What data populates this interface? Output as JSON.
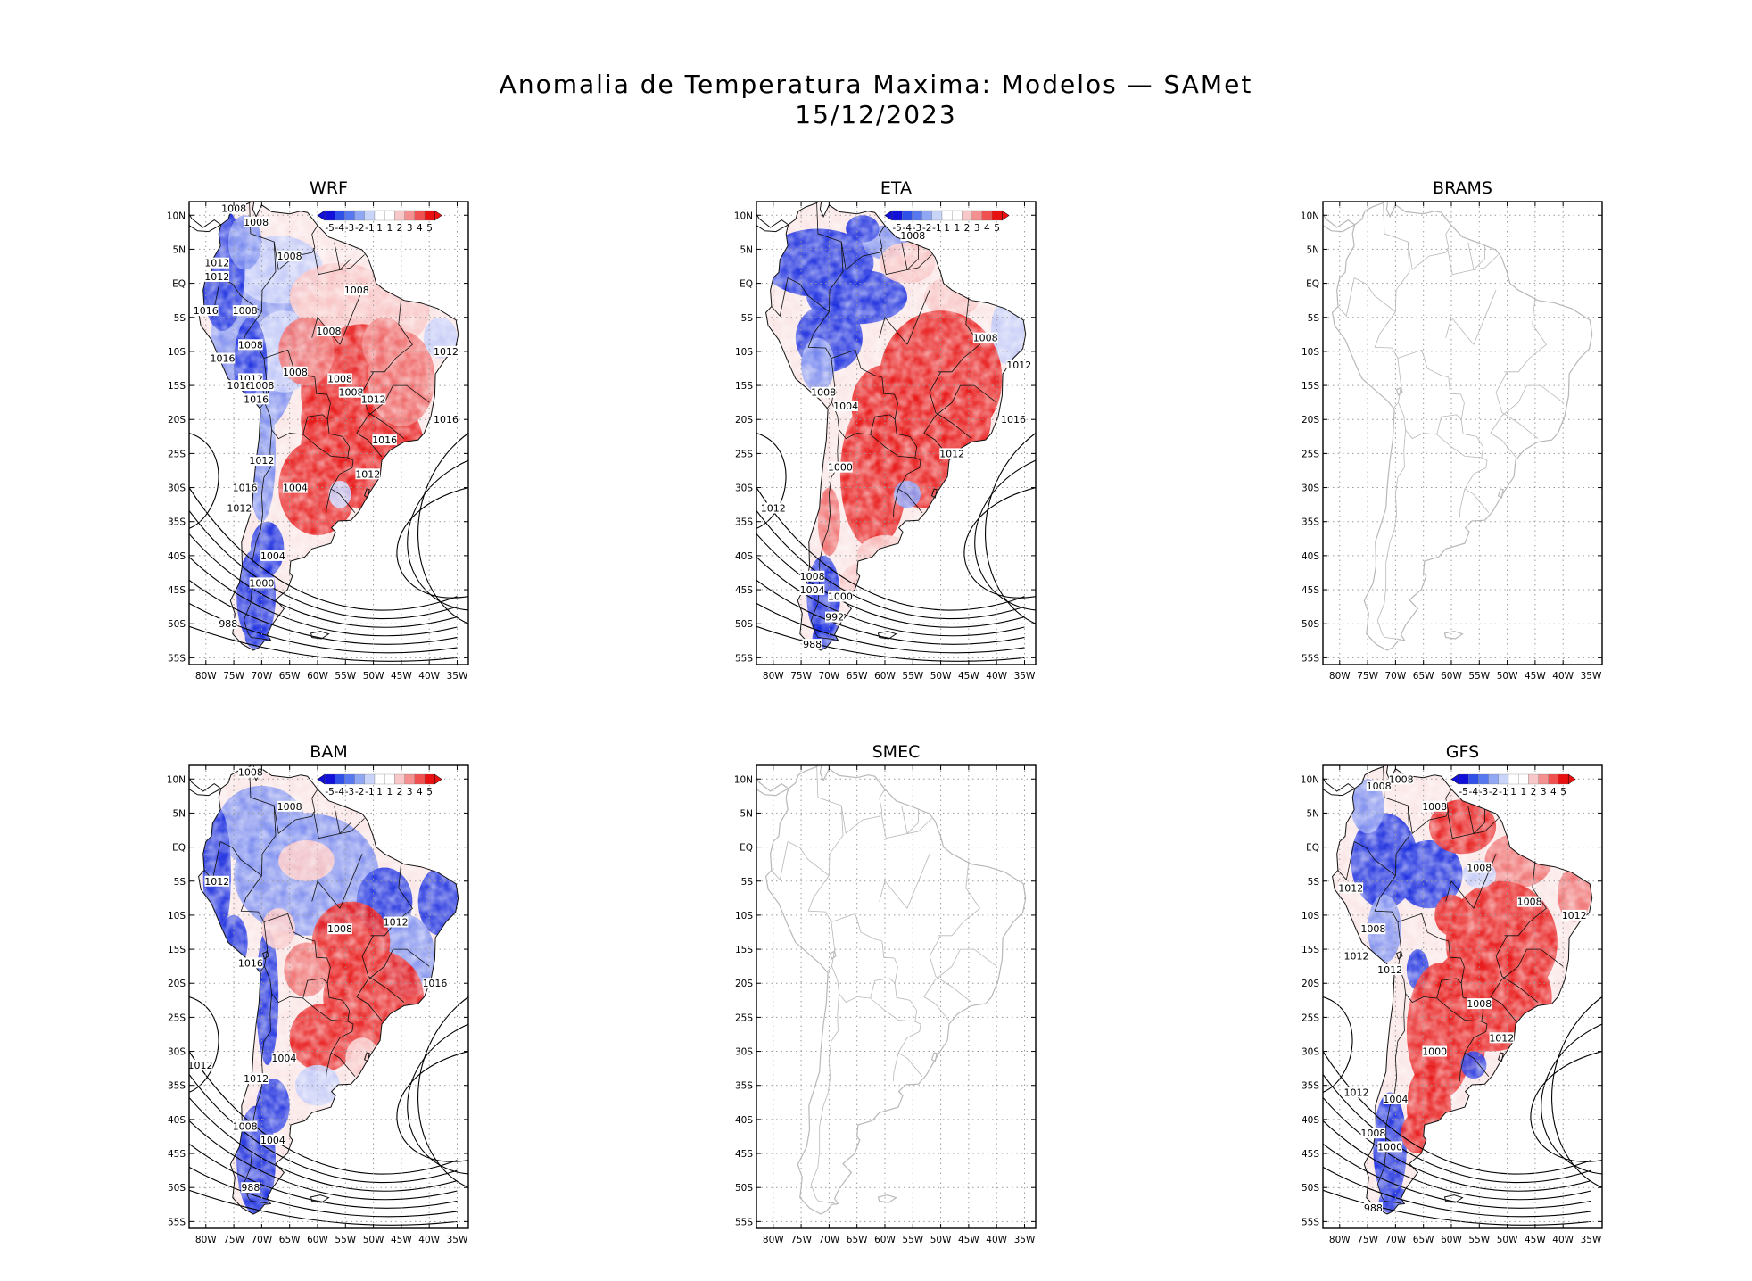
{
  "figure": {
    "title_line1": "Anomalia de Temperatura Maxima: Modelos — SAMet",
    "title_line2": "15/12/2023"
  },
  "axes": {
    "lat_labels": [
      "10N",
      "5N",
      "EQ",
      "5S",
      "10S",
      "15S",
      "20S",
      "25S",
      "30S",
      "35S",
      "40S",
      "45S",
      "50S",
      "55S"
    ],
    "lon_labels": [
      "80W",
      "75W",
      "70W",
      "65W",
      "60W",
      "55W",
      "50W",
      "45W",
      "40W",
      "35W"
    ]
  },
  "colorbar": {
    "labels": [
      "-5",
      "-4",
      "-3",
      "-2",
      "-1",
      "1",
      "1",
      "2",
      "3",
      "4",
      "5"
    ],
    "colors": [
      "#1010d8",
      "#3050e8",
      "#5878f0",
      "#90a8f4",
      "#c8d4f8",
      "#ffffff",
      "#ffffff",
      "#f8c8c8",
      "#f49090",
      "#f05050",
      "#e81010"
    ]
  },
  "colors": {
    "warm": "#e81c1c",
    "cold": "#1a2ee0",
    "land_outline": "#b8b8b8",
    "grid": "#9a9a9a"
  },
  "panels": [
    {
      "name": "WRF",
      "has_data": true,
      "isobars": [
        {
          "label": "1008",
          "lat": 11,
          "lon": -75
        },
        {
          "label": "1008",
          "lat": 9,
          "lon": -71
        },
        {
          "label": "1008",
          "lat": 4,
          "lon": -65
        },
        {
          "label": "1012",
          "lat": 3,
          "lon": -78
        },
        {
          "label": "1012",
          "lat": 1,
          "lon": -78
        },
        {
          "label": "1008",
          "lat": -1,
          "lon": -53
        },
        {
          "label": "1016",
          "lat": -4,
          "lon": -80
        },
        {
          "label": "1008",
          "lat": -4,
          "lon": -73
        },
        {
          "label": "1008",
          "lat": -7,
          "lon": -58
        },
        {
          "label": "1008",
          "lat": -9,
          "lon": -72
        },
        {
          "label": "1016",
          "lat": -11,
          "lon": -77
        },
        {
          "label": "1012",
          "lat": -10,
          "lon": -37
        },
        {
          "label": "1012",
          "lat": -14,
          "lon": -72
        },
        {
          "label": "1016",
          "lat": -15,
          "lon": -74
        },
        {
          "label": "1008",
          "lat": -15,
          "lon": -70
        },
        {
          "label": "1016",
          "lat": -17,
          "lon": -71
        },
        {
          "label": "1008",
          "lat": -13,
          "lon": -64
        },
        {
          "label": "1008",
          "lat": -14,
          "lon": -56
        },
        {
          "label": "1008",
          "lat": -16,
          "lon": -54
        },
        {
          "label": "1012",
          "lat": -17,
          "lon": -50
        },
        {
          "label": "1016",
          "lat": -20,
          "lon": -37
        },
        {
          "label": "1016",
          "lat": -23,
          "lon": -48
        },
        {
          "label": "1012",
          "lat": -26,
          "lon": -70
        },
        {
          "label": "1012",
          "lat": -28,
          "lon": -51
        },
        {
          "label": "1016",
          "lat": -30,
          "lon": -73
        },
        {
          "label": "1004",
          "lat": -30,
          "lon": -64
        },
        {
          "label": "1012",
          "lat": -33,
          "lon": -74
        },
        {
          "label": "1004",
          "lat": -40,
          "lon": -68
        },
        {
          "label": "1000",
          "lat": -44,
          "lon": -70
        },
        {
          "label": "988",
          "lat": -50,
          "lon": -76
        }
      ]
    },
    {
      "name": "ETA",
      "has_data": true,
      "isobars": [
        {
          "label": "1008",
          "lat": 7,
          "lon": -55
        },
        {
          "label": "1008",
          "lat": -8,
          "lon": -42
        },
        {
          "label": "1012",
          "lat": -12,
          "lon": -36
        },
        {
          "label": "1008",
          "lat": -16,
          "lon": -71
        },
        {
          "label": "1004",
          "lat": -18,
          "lon": -67
        },
        {
          "label": "1016",
          "lat": -20,
          "lon": -37
        },
        {
          "label": "1012",
          "lat": -25,
          "lon": -48
        },
        {
          "label": "1000",
          "lat": -27,
          "lon": -68
        },
        {
          "label": "1012",
          "lat": -33,
          "lon": -80
        },
        {
          "label": "1008",
          "lat": -43,
          "lon": -73
        },
        {
          "label": "1004",
          "lat": -45,
          "lon": -73
        },
        {
          "label": "1000",
          "lat": -46,
          "lon": -68
        },
        {
          "label": "992",
          "lat": -49,
          "lon": -69
        },
        {
          "label": "988",
          "lat": -53,
          "lon": -73
        }
      ]
    },
    {
      "name": "BRAMS",
      "has_data": false,
      "isobars": []
    },
    {
      "name": "BAM",
      "has_data": true,
      "isobars": [
        {
          "label": "1008",
          "lat": 11,
          "lon": -72
        },
        {
          "label": "1008",
          "lat": 6,
          "lon": -65
        },
        {
          "label": "1012",
          "lat": -5,
          "lon": -78
        },
        {
          "label": "1008",
          "lat": -12,
          "lon": -56
        },
        {
          "label": "1012",
          "lat": -11,
          "lon": -46
        },
        {
          "label": "1016",
          "lat": -17,
          "lon": -72
        },
        {
          "label": "1016",
          "lat": -20,
          "lon": -39
        },
        {
          "label": "1012",
          "lat": -32,
          "lon": -81
        },
        {
          "label": "1004",
          "lat": -31,
          "lon": -66
        },
        {
          "label": "1012",
          "lat": -34,
          "lon": -71
        },
        {
          "label": "1008",
          "lat": -41,
          "lon": -73
        },
        {
          "label": "1004",
          "lat": -43,
          "lon": -68
        },
        {
          "label": "988",
          "lat": -50,
          "lon": -72
        }
      ]
    },
    {
      "name": "SMEC",
      "has_data": false,
      "isobars": []
    },
    {
      "name": "GFS",
      "has_data": true,
      "isobars": [
        {
          "label": "1008",
          "lat": 10,
          "lon": -69
        },
        {
          "label": "1008",
          "lat": 9,
          "lon": -73
        },
        {
          "label": "1008",
          "lat": 6,
          "lon": -63
        },
        {
          "label": "1008",
          "lat": -3,
          "lon": -55
        },
        {
          "label": "1012",
          "lat": -6,
          "lon": -78
        },
        {
          "label": "1008",
          "lat": -8,
          "lon": -46
        },
        {
          "label": "1012",
          "lat": -10,
          "lon": -38
        },
        {
          "label": "1008",
          "lat": -12,
          "lon": -74
        },
        {
          "label": "1012",
          "lat": -16,
          "lon": -77
        },
        {
          "label": "1012",
          "lat": -18,
          "lon": -71
        },
        {
          "label": "1008",
          "lat": -23,
          "lon": -55
        },
        {
          "label": "1012",
          "lat": -28,
          "lon": -51
        },
        {
          "label": "1000",
          "lat": -30,
          "lon": -63
        },
        {
          "label": "1012",
          "lat": -36,
          "lon": -77
        },
        {
          "label": "1004",
          "lat": -37,
          "lon": -70
        },
        {
          "label": "1008",
          "lat": -42,
          "lon": -74
        },
        {
          "label": "1000",
          "lat": -44,
          "lon": -71
        },
        {
          "label": "988",
          "lat": -53,
          "lon": -74
        }
      ]
    }
  ]
}
